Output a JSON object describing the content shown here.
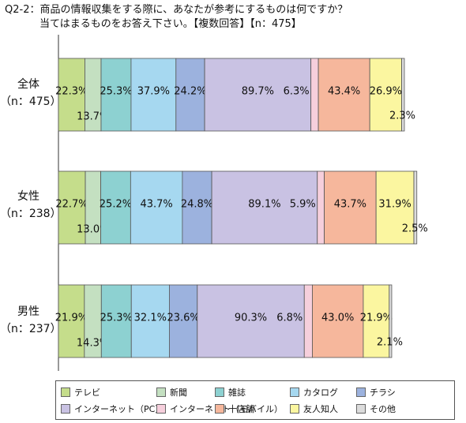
{
  "title": {
    "line1": "Q2-2：商品の情報収集をする際に、あなたが参考にするものは何ですか？",
    "line2": "当てはまるものをお答え下さい。【複数回答】【n：475】"
  },
  "chart_data": {
    "type": "bar",
    "orientation": "horizontal",
    "stacked": true,
    "categories": [
      {
        "name": "全体",
        "n": "（n：475）"
      },
      {
        "name": "女性",
        "n": "（n：238）"
      },
      {
        "name": "男性",
        "n": "（n：237）"
      }
    ],
    "value_format": "{v}%",
    "legend_position": "bottom",
    "series": [
      {
        "name": "テレビ",
        "color": "#c5dd8b",
        "values": [
          22.3,
          22.7,
          21.9
        ],
        "labels": [
          "22.3%",
          "22.7%",
          "21.9%"
        ]
      },
      {
        "name": "新聞",
        "color": "#c4e0c1",
        "values": [
          13.7,
          13.0,
          14.3
        ],
        "labels": [
          "13.7%",
          "13.0%",
          "14.3%"
        ]
      },
      {
        "name": "雑誌",
        "color": "#8dd1d1",
        "values": [
          25.3,
          25.2,
          25.3
        ],
        "labels": [
          "25.3%",
          "25.2%",
          "25.3%"
        ]
      },
      {
        "name": "カタログ",
        "color": "#a6d8f0",
        "values": [
          37.9,
          43.7,
          32.1
        ],
        "labels": [
          "37.9%",
          "43.7%",
          "32.1%"
        ]
      },
      {
        "name": "チラシ",
        "color": "#9cb2de",
        "values": [
          24.2,
          24.8,
          23.6
        ],
        "labels": [
          "24.2%",
          "24.8%",
          "23.6%"
        ]
      },
      {
        "name": "インターネット（PC）",
        "color": "#c9c2e3",
        "values": [
          89.7,
          89.1,
          90.3
        ],
        "labels": [
          "89.7%",
          "89.1%",
          "90.3%"
        ]
      },
      {
        "name": "インターネット（モバイル）",
        "color": "#f6cfdc",
        "values": [
          6.3,
          5.9,
          6.8
        ],
        "labels": [
          "6.3%",
          "5.9%",
          "6.8%"
        ]
      },
      {
        "name": "十店舗",
        "color": "#f6b79c",
        "values": [
          43.4,
          43.7,
          43.0
        ],
        "labels": [
          "43.4%",
          "43.7%",
          "43.0%"
        ]
      },
      {
        "name": "友人知人",
        "color": "#fbf6a0",
        "values": [
          26.9,
          31.9,
          21.9
        ],
        "labels": [
          "26.9%",
          "31.9%",
          "21.9%"
        ]
      },
      {
        "name": "その他",
        "color": "#dcdcdc",
        "values": [
          2.3,
          2.5,
          2.1
        ],
        "labels": [
          "2.3%",
          "2.5%",
          "2.1%"
        ]
      }
    ]
  }
}
